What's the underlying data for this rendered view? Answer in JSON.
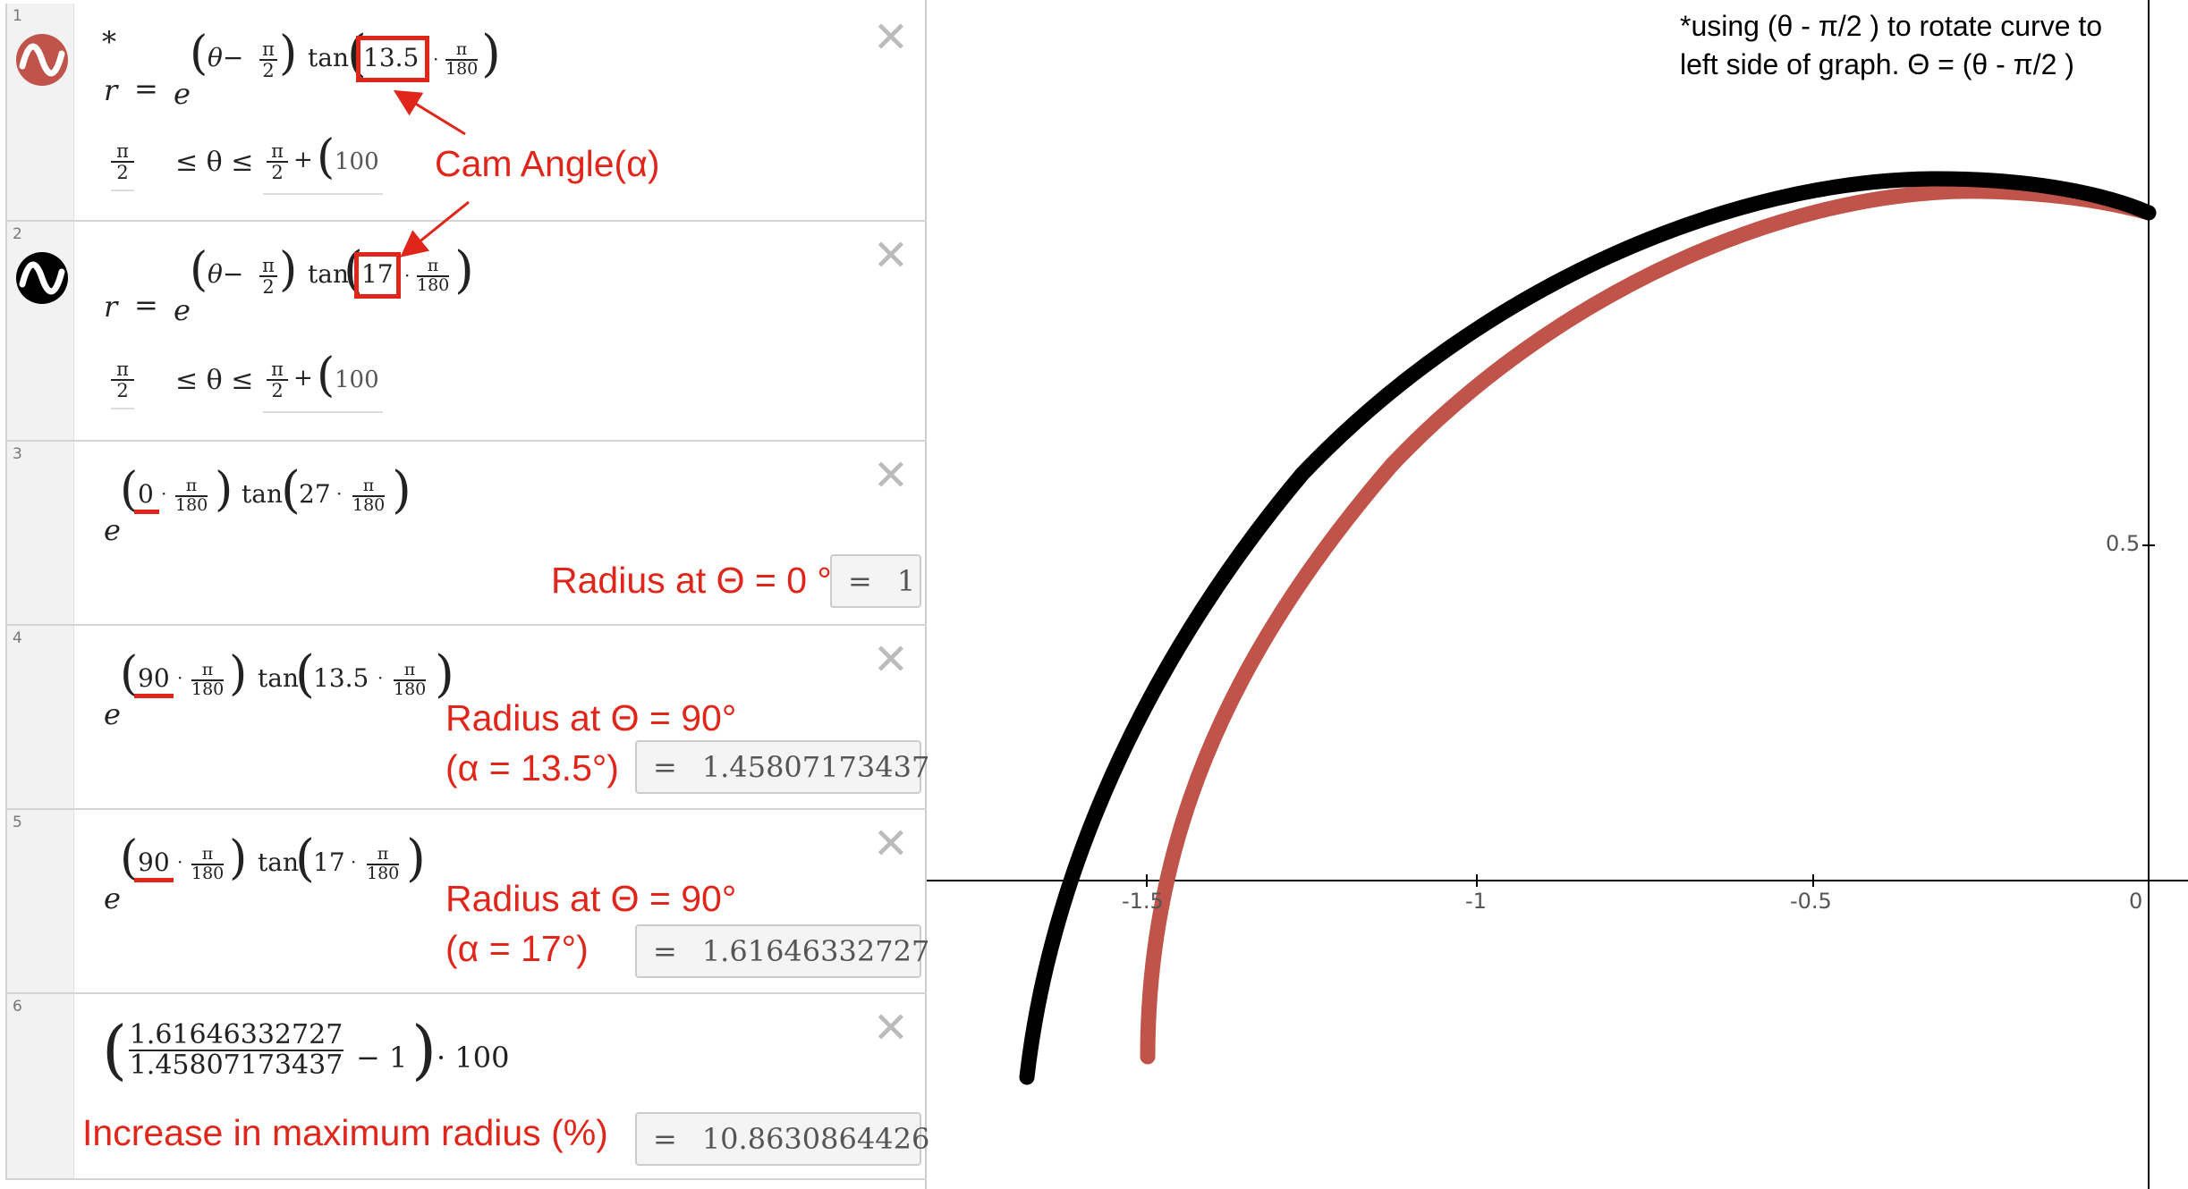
{
  "colors": {
    "accent_red": "#e0261a",
    "curve_red": "#c0534a",
    "curve_black": "#000000"
  },
  "expressions": [
    {
      "index": "1",
      "icon": "wave-red-icon",
      "var": "r",
      "cam": "13.5",
      "lower_num": "π",
      "lower_den": "2",
      "upper_tail": "100"
    },
    {
      "index": "2",
      "icon": "wave-black-icon",
      "var": "r",
      "cam": "17",
      "lower_num": "π",
      "lower_den": "2",
      "upper_tail": "100"
    },
    {
      "index": "3",
      "theta": "0",
      "angle": "27",
      "result": "1"
    },
    {
      "index": "4",
      "theta": "90",
      "angle": "13.5",
      "result": "1.45807173437"
    },
    {
      "index": "5",
      "theta": "90",
      "angle": "17",
      "result": "1.61646332727"
    },
    {
      "index": "6",
      "numerator": "1.61646332727",
      "denominator": "1.45807173437",
      "minus": "− 1",
      "times": "· 100",
      "result": "10.8630864426"
    }
  ],
  "math_symbols": {
    "eq": "=",
    "e": "e",
    "theta_minus": "θ−",
    "tan": "tan",
    "pi": "π",
    "two": "2",
    "one80": "180",
    "leq_theta": "≤ θ ≤",
    "plus": "+",
    "dot": "·",
    "star": "*",
    "open": "(",
    "close": ")",
    "result_eq": "="
  },
  "annotations": {
    "cam_angle": "Cam Angle(α)",
    "radius_0": "Radius at Θ = 0 °",
    "radius_90_a_line1": "Radius at Θ = 90°",
    "radius_90_a_line2": "(α = 13.5°)",
    "radius_90_b_line1": "Radius at Θ = 90°",
    "radius_90_b_line2": "(α = 17°)",
    "increase": "Increase in maximum radius (%)"
  },
  "graph": {
    "note_line1": "*using (θ - π/2 ) to rotate curve to",
    "note_line2": "left side of graph. Θ = (θ - π/2 )",
    "x_ticks": [
      "-1.5",
      "-1",
      "-0.5",
      "0"
    ],
    "y_ticks": [
      "0.5"
    ]
  }
}
